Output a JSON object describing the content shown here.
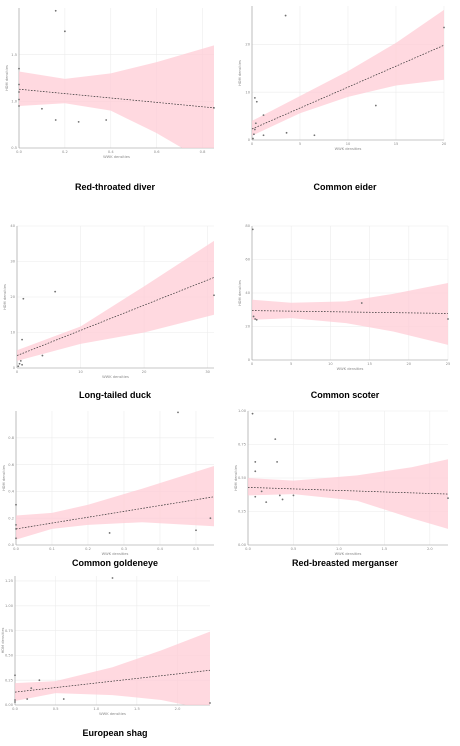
{
  "colors": {
    "band": "#ffccd5",
    "line": "#333333",
    "point_default": "#707070",
    "point_highlight": "#d9b84a",
    "grid": "#ececec"
  },
  "chart_data": [
    {
      "type": "scatter",
      "title": "Red-throated diver",
      "xlabel": "WWK densities",
      "ylabel": "HDM densities",
      "xlim": [
        0,
        0.85
      ],
      "ylim": [
        0.5,
        2.0
      ],
      "xticks": [
        0,
        0.2,
        0.4,
        0.6,
        0.8
      ],
      "yticks": [
        0.5,
        1.0,
        1.5
      ],
      "xtick_labels": [
        "0.0",
        "0.2",
        "0.4",
        "0.6",
        "0.8"
      ],
      "ytick_labels": [
        "0.5",
        "1.0",
        "1.5"
      ],
      "points": [
        {
          "x": 0.0,
          "y": 1.35
        },
        {
          "x": 0.0,
          "y": 1.18
        },
        {
          "x": 0.0,
          "y": 1.1
        },
        {
          "x": 0.0,
          "y": 1.02
        },
        {
          "x": 0.0,
          "y": 0.95
        },
        {
          "x": 0.16,
          "y": 1.97
        },
        {
          "x": 0.2,
          "y": 1.75
        },
        {
          "x": 0.1,
          "y": 0.92
        },
        {
          "x": 0.16,
          "y": 0.8
        },
        {
          "x": 0.26,
          "y": 0.78
        },
        {
          "x": 0.38,
          "y": 0.8
        },
        {
          "x": 0.85,
          "y": 0.93
        }
      ],
      "fit": [
        [
          0,
          1.13
        ],
        [
          0.85,
          0.93
        ]
      ],
      "band_upper": [
        [
          0,
          1.32
        ],
        [
          0.2,
          1.24
        ],
        [
          0.4,
          1.3
        ],
        [
          0.6,
          1.42
        ],
        [
          0.85,
          1.6
        ]
      ],
      "band_lower": [
        [
          0,
          0.95
        ],
        [
          0.2,
          0.98
        ],
        [
          0.4,
          0.9
        ],
        [
          0.6,
          0.66
        ],
        [
          0.85,
          0.3
        ]
      ]
    },
    {
      "type": "scatter",
      "title": "Common eider",
      "xlabel": "WWK densities",
      "ylabel": "HDM densities",
      "xlim": [
        0,
        20
      ],
      "ylim": [
        0,
        28
      ],
      "xticks": [
        0,
        5,
        10,
        15,
        20
      ],
      "yticks": [
        0,
        10,
        20
      ],
      "xtick_labels": [
        "0",
        "5",
        "10",
        "15",
        "20"
      ],
      "ytick_labels": [
        "0",
        "10",
        "20"
      ],
      "points": [
        {
          "x": 0.1,
          "y": 0.3
        },
        {
          "x": 0.2,
          "y": 1.2
        },
        {
          "x": 0.3,
          "y": 2.2
        },
        {
          "x": 0.4,
          "y": 3.5
        },
        {
          "x": 0.3,
          "y": 8.8
        },
        {
          "x": 0.5,
          "y": 8.0
        },
        {
          "x": 1.2,
          "y": 5.2
        },
        {
          "x": 3.5,
          "y": 26.0
        },
        {
          "x": 3.6,
          "y": 1.5
        },
        {
          "x": 6.5,
          "y": 1.0
        },
        {
          "x": 1.2,
          "y": 1.0
        },
        {
          "x": 12.9,
          "y": 7.2
        },
        {
          "x": 20.0,
          "y": 23.5
        }
      ],
      "fit": [
        [
          0,
          2.3
        ],
        [
          20,
          19.8
        ]
      ],
      "band_upper": [
        [
          0,
          4.0
        ],
        [
          5,
          9.2
        ],
        [
          10,
          14.4
        ],
        [
          15,
          20.3
        ],
        [
          20,
          27.2
        ]
      ],
      "band_lower": [
        [
          0,
          0.9
        ],
        [
          5,
          5.6
        ],
        [
          10,
          9.0
        ],
        [
          15,
          11.4
        ],
        [
          20,
          12.6
        ]
      ]
    },
    {
      "type": "scatter",
      "title": "Long-tailed duck",
      "xlabel": "WWK densities",
      "ylabel": "HDM densities",
      "xlim": [
        0,
        31
      ],
      "ylim": [
        0,
        40
      ],
      "xticks": [
        0,
        10,
        20,
        30
      ],
      "yticks": [
        0,
        10,
        20,
        30,
        40
      ],
      "xtick_labels": [
        "0",
        "10",
        "20",
        "30"
      ],
      "ytick_labels": [
        "0",
        "10",
        "20",
        "30",
        "40"
      ],
      "points": [
        {
          "x": 0.2,
          "y": 0.5
        },
        {
          "x": 0.4,
          "y": 1.2
        },
        {
          "x": 0.6,
          "y": 2.0
        },
        {
          "x": 0.8,
          "y": 8.0
        },
        {
          "x": 0.8,
          "y": 0.9
        },
        {
          "x": 1.0,
          "y": 19.5
        },
        {
          "x": 4.0,
          "y": 3.5
        },
        {
          "x": 6.0,
          "y": 21.5
        },
        {
          "x": 31.0,
          "y": 20.5
        }
      ],
      "fit": [
        [
          0,
          3.5
        ],
        [
          31,
          25.5
        ]
      ],
      "band_upper": [
        [
          0,
          5.0
        ],
        [
          10,
          11.7
        ],
        [
          20,
          23.0
        ],
        [
          31,
          35.8
        ]
      ],
      "band_lower": [
        [
          0,
          2.0
        ],
        [
          10,
          6.8
        ],
        [
          20,
          10.0
        ],
        [
          31,
          15.0
        ]
      ]
    },
    {
      "type": "scatter",
      "title": "Common scoter",
      "xlabel": "WWK densities",
      "ylabel": "HDM densities",
      "xlim": [
        0,
        25
      ],
      "ylim": [
        0,
        80
      ],
      "xticks": [
        0,
        5,
        10,
        15,
        20,
        25
      ],
      "yticks": [
        0,
        20,
        40,
        60,
        80
      ],
      "xtick_labels": [
        "0",
        "5",
        "10",
        "15",
        "20",
        "25"
      ],
      "ytick_labels": [
        "0",
        "20",
        "40",
        "60",
        "80"
      ],
      "points": [
        {
          "x": 0.1,
          "y": 78.0
        },
        {
          "x": 0.2,
          "y": 26.0
        },
        {
          "x": 0.4,
          "y": 24.5
        },
        {
          "x": 0.6,
          "y": 24.0
        },
        {
          "x": 14.0,
          "y": 34.0
        },
        {
          "x": 25.0,
          "y": 24.5
        }
      ],
      "fit": [
        [
          0,
          29.5
        ],
        [
          25,
          27.8
        ]
      ],
      "band_upper": [
        [
          0,
          36.0
        ],
        [
          5,
          34.2
        ],
        [
          12,
          35.0
        ],
        [
          18,
          39.5
        ],
        [
          25,
          46.0
        ]
      ],
      "band_lower": [
        [
          0,
          24.0
        ],
        [
          5,
          25.0
        ],
        [
          12,
          22.0
        ],
        [
          18,
          17.0
        ],
        [
          25,
          9.0
        ]
      ]
    },
    {
      "type": "scatter",
      "title": "Common goldeneye",
      "xlabel": "WWK densities",
      "ylabel": "HDM densities",
      "xlim": [
        0,
        0.55
      ],
      "ylim": [
        0,
        1.0
      ],
      "xticks": [
        0,
        0.1,
        0.2,
        0.3,
        0.4,
        0.5
      ],
      "yticks": [
        0,
        0.2,
        0.4,
        0.6,
        0.8
      ],
      "xtick_labels": [
        "0.0",
        "0.1",
        "0.2",
        "0.3",
        "0.4",
        "0.5"
      ],
      "ytick_labels": [
        "0.0",
        "0.2",
        "0.4",
        "0.6",
        "0.8"
      ],
      "points": [
        {
          "x": 0.0,
          "y": 0.3
        },
        {
          "x": 0.0,
          "y": 0.15
        },
        {
          "x": 0.0,
          "y": 0.12
        },
        {
          "x": 0.0,
          "y": 0.05
        },
        {
          "x": 0.26,
          "y": 0.09
        },
        {
          "x": 0.45,
          "y": 0.99
        },
        {
          "x": 0.5,
          "y": 0.11
        },
        {
          "x": 0.54,
          "y": 0.2
        }
      ],
      "fit": [
        [
          0,
          0.12
        ],
        [
          0.55,
          0.36
        ]
      ],
      "band_upper": [
        [
          0,
          0.22
        ],
        [
          0.1,
          0.24
        ],
        [
          0.2,
          0.3
        ],
        [
          0.35,
          0.42
        ],
        [
          0.55,
          0.59
        ]
      ],
      "band_lower": [
        [
          0,
          0.04
        ],
        [
          0.1,
          0.12
        ],
        [
          0.2,
          0.15
        ],
        [
          0.35,
          0.17
        ],
        [
          0.55,
          0.14
        ]
      ]
    },
    {
      "type": "scatter",
      "title": "Red-breasted merganser",
      "xlabel": "WWK densities",
      "ylabel": "HDM densities",
      "xlim": [
        0,
        2.2
      ],
      "ylim": [
        0,
        1.0
      ],
      "xticks": [
        0,
        0.5,
        1.0,
        1.5,
        2.0
      ],
      "yticks": [
        0,
        0.25,
        0.5,
        0.75,
        1.0
      ],
      "xtick_labels": [
        "0.0",
        "0.5",
        "1.0",
        "1.5",
        "2.0"
      ],
      "ytick_labels": [
        "0.00",
        "0.25",
        "0.50",
        "0.75",
        "1.00"
      ],
      "points": [
        {
          "x": 0.05,
          "y": 0.98
        },
        {
          "x": 0.08,
          "y": 0.55
        },
        {
          "x": 0.08,
          "y": 0.62
        },
        {
          "x": 0.15,
          "y": 0.4
        },
        {
          "x": 0.2,
          "y": 0.32
        },
        {
          "x": 0.3,
          "y": 0.79
        },
        {
          "x": 0.32,
          "y": 0.62
        },
        {
          "x": 0.35,
          "y": 0.37
        },
        {
          "x": 0.38,
          "y": 0.34
        },
        {
          "x": 0.5,
          "y": 0.37
        },
        {
          "x": 0.08,
          "y": 0.36
        },
        {
          "x": 2.2,
          "y": 0.35
        }
      ],
      "fit": [
        [
          0,
          0.43
        ],
        [
          2.2,
          0.38
        ]
      ],
      "band_upper": [
        [
          0,
          0.5
        ],
        [
          0.5,
          0.48
        ],
        [
          1.2,
          0.52
        ],
        [
          1.8,
          0.58
        ],
        [
          2.2,
          0.64
        ]
      ],
      "band_lower": [
        [
          0,
          0.37
        ],
        [
          0.5,
          0.38
        ],
        [
          1.2,
          0.33
        ],
        [
          1.8,
          0.2
        ],
        [
          2.2,
          0.12
        ]
      ]
    },
    {
      "type": "scatter",
      "title": "European shag",
      "xlabel": "WWK densities",
      "ylabel": "HDM densities",
      "xlim": [
        0,
        2.4
      ],
      "ylim": [
        0,
        1.3
      ],
      "xticks": [
        0,
        0.5,
        1.0,
        1.5,
        2.0
      ],
      "yticks": [
        0,
        0.25,
        0.5,
        0.75,
        1.0,
        1.25
      ],
      "xtick_labels": [
        "0.0",
        "0.5",
        "1.0",
        "1.5",
        "2.0"
      ],
      "ytick_labels": [
        "0.00",
        "0.25",
        "0.50",
        "0.75",
        "1.00",
        "1.25"
      ],
      "points": [
        {
          "x": 0.0,
          "y": 0.3
        },
        {
          "x": 0.0,
          "y": 0.05
        },
        {
          "x": 0.0,
          "y": 0.03
        },
        {
          "x": 0.15,
          "y": 0.06
        },
        {
          "x": 0.2,
          "y": 0.17
        },
        {
          "x": 0.3,
          "y": 0.25
        },
        {
          "x": 0.6,
          "y": 0.06
        },
        {
          "x": 1.2,
          "y": 1.28
        },
        {
          "x": 2.4,
          "y": 0.02
        }
      ],
      "fit": [
        [
          0,
          0.13
        ],
        [
          2.4,
          0.35
        ]
      ],
      "band_upper": [
        [
          0,
          0.22
        ],
        [
          0.5,
          0.24
        ],
        [
          1.2,
          0.38
        ],
        [
          1.8,
          0.55
        ],
        [
          2.4,
          0.74
        ]
      ],
      "band_lower": [
        [
          0,
          0.04
        ],
        [
          0.5,
          0.12
        ],
        [
          1.2,
          0.1
        ],
        [
          1.8,
          0.05
        ],
        [
          2.4,
          -0.05
        ]
      ]
    }
  ]
}
